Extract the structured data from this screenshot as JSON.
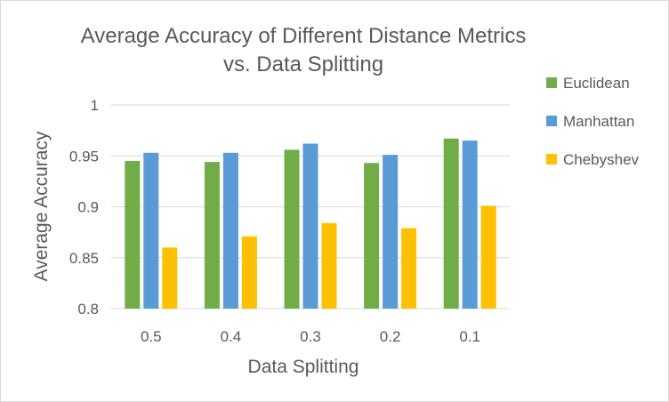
{
  "chart_data": {
    "type": "bar",
    "title_line1": "Average Accuracy of Different Distance Metrics",
    "title_line2": "vs. Data Splitting",
    "xlabel": "Data Splitting",
    "ylabel": "Average Accuracy",
    "categories": [
      "0.5",
      "0.4",
      "0.3",
      "0.2",
      "0.1"
    ],
    "series": [
      {
        "name": "Euclidean",
        "color": "#70ad47",
        "values": [
          0.945,
          0.944,
          0.956,
          0.943,
          0.967
        ]
      },
      {
        "name": "Manhattan",
        "color": "#5b9bd5",
        "values": [
          0.953,
          0.953,
          0.962,
          0.951,
          0.965
        ]
      },
      {
        "name": "Chebyshev",
        "color": "#ffc000",
        "values": [
          0.86,
          0.871,
          0.884,
          0.879,
          0.901
        ]
      }
    ],
    "ylim": [
      0.8,
      1.0
    ],
    "yticks": [
      "0.8",
      "0.85",
      "0.9",
      "0.95",
      "1"
    ],
    "grid": true,
    "legend_position": "right"
  }
}
